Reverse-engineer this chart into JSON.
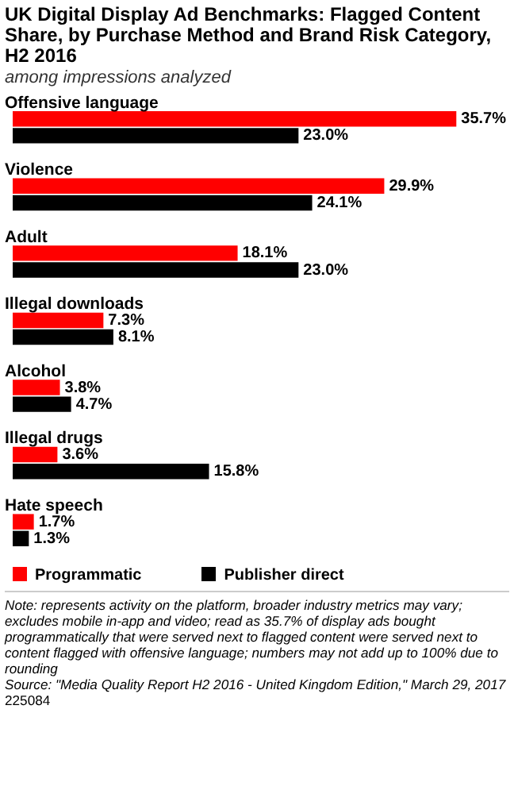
{
  "chart_data": {
    "type": "bar",
    "orientation": "horizontal",
    "title": "UK Digital Display Ad Benchmarks: Flagged Content Share, by Purchase Method and Brand Risk Category, H2 2016",
    "subtitle": "among impressions analyzed",
    "categories": [
      "Offensive language",
      "Violence",
      "Adult",
      "Illegal downloads",
      "Alcohol",
      "Illegal drugs",
      "Hate speech"
    ],
    "series": [
      {
        "name": "Programmatic",
        "color": "#ff0000",
        "values": [
          35.7,
          29.9,
          18.1,
          7.3,
          3.8,
          3.6,
          1.7
        ],
        "value_labels": [
          "35.7%",
          "29.9%",
          "18.1%",
          "7.3%",
          "3.8%",
          "3.6%",
          "1.7%"
        ]
      },
      {
        "name": "Publisher direct",
        "color": "#000000",
        "values": [
          23.0,
          24.1,
          23.0,
          8.1,
          4.7,
          15.8,
          1.3
        ],
        "value_labels": [
          "23.0%",
          "24.1%",
          "23.0%",
          "8.1%",
          "4.7%",
          "15.8%",
          "1.3%"
        ]
      }
    ],
    "legend": "bottom",
    "tick_labels": "y",
    "annotations": [
      "Note: represents activity on the platform, broader industry metrics may vary; excludes mobile in-app and video; read as 35.7% of display ads bought programmatically that were served next to flagged content were served next to content flagged with offensive language; numbers may not add up to 100% due to rounding",
      "Source: \"Media Quality Report H2 2016 - United Kingdom Edition,\" March 29, 2017",
      "225084"
    ]
  }
}
